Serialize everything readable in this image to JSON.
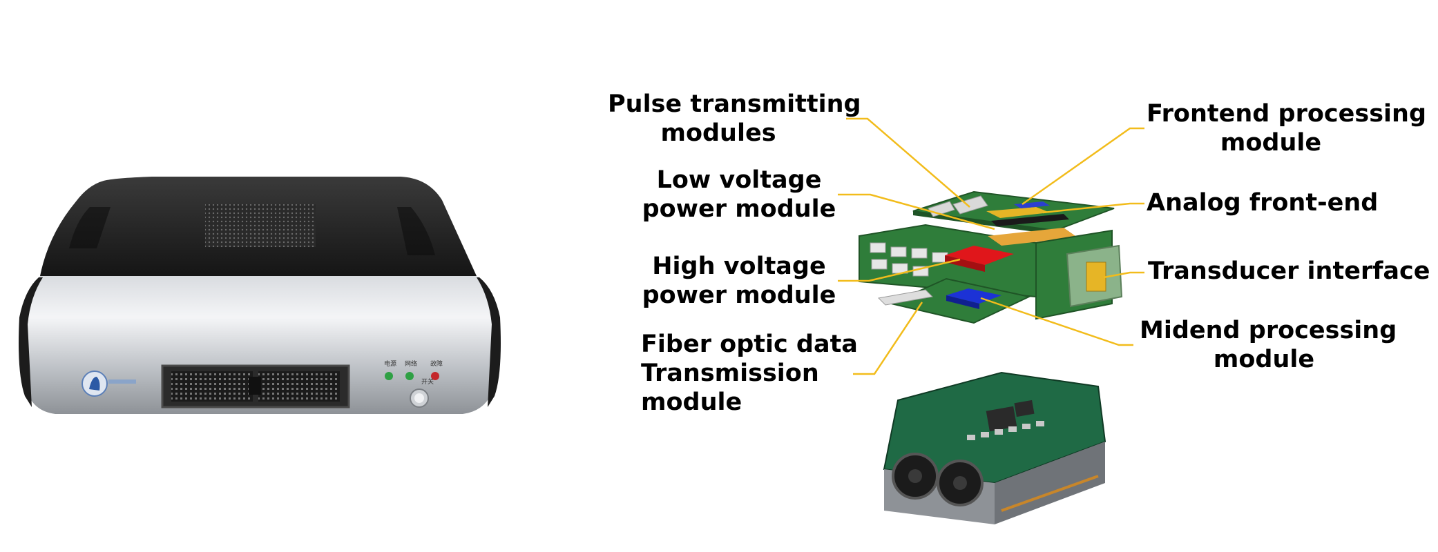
{
  "device": {
    "indicator_labels": [
      "电源",
      "网络",
      "故障"
    ],
    "button_caption": "开关"
  },
  "labels": {
    "pulse_transmitting": {
      "lines": [
        "Pulse transmitting",
        "modules"
      ]
    },
    "low_voltage": {
      "lines": [
        "Low voltage",
        "power module"
      ]
    },
    "high_voltage": {
      "lines": [
        "High voltage",
        "power module"
      ]
    },
    "fiber_optic": {
      "lines": [
        "Fiber optic data",
        "Transmission",
        "module"
      ]
    },
    "frontend_processing": {
      "lines": [
        "Frontend processing",
        "module"
      ]
    },
    "analog_frontend": {
      "lines": [
        "Analog front-end"
      ]
    },
    "transducer_interface": {
      "lines": [
        "Transducer interface"
      ]
    },
    "midend_processing": {
      "lines": [
        "Midend processing",
        "module"
      ]
    }
  },
  "colors": {
    "leader_line": "#f2bc1b",
    "pcb_green": "#2f7d3a",
    "hv_module": "#e0161b",
    "midend_module": "#1c32d6",
    "analog_module": "#e6b526"
  }
}
